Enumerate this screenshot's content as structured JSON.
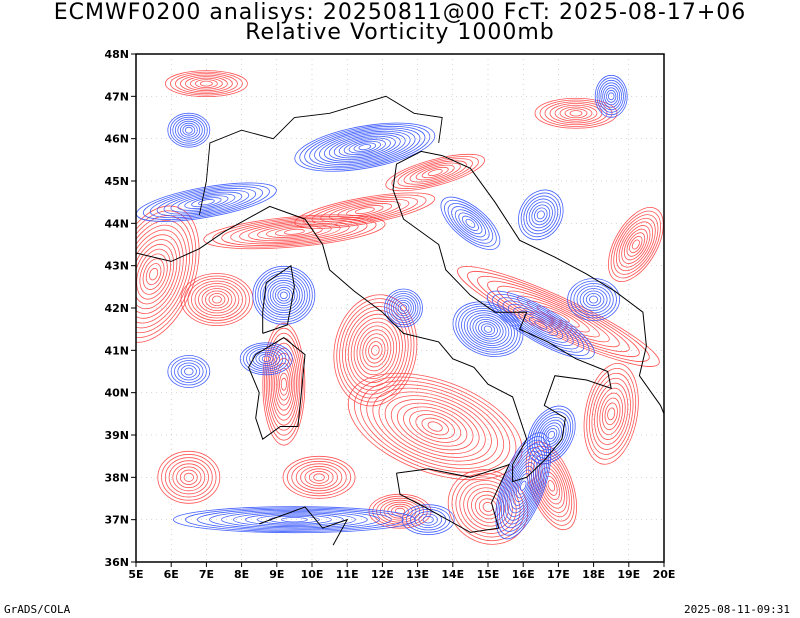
{
  "title_line1": "ECMWF0200 analisys: 20250811@00 FcT: 2025-08-17+06",
  "title_line2": "Relative Vorticity 1000mb",
  "x_ticks": [
    "5E",
    "6E",
    "7E",
    "8E",
    "9E",
    "10E",
    "11E",
    "12E",
    "13E",
    "14E",
    "15E",
    "16E",
    "17E",
    "18E",
    "19E",
    "20E"
  ],
  "y_ticks": [
    "36N",
    "37N",
    "38N",
    "39N",
    "40N",
    "41N",
    "42N",
    "43N",
    "44N",
    "45N",
    "46N",
    "47N",
    "48N"
  ],
  "footer_left": "GrADS/COLA",
  "footer_right": "2025-08-11-09:31",
  "colors": {
    "positive": "#ff4040",
    "negative": "#3050ff",
    "coast": "#000000",
    "grid": "#b0b0b0"
  }
}
